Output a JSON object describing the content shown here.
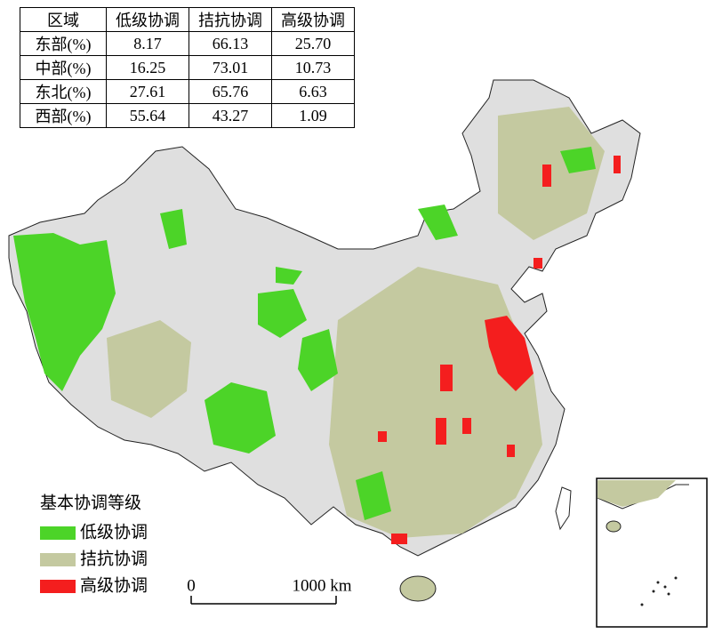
{
  "table": {
    "header": [
      "区域",
      "低级协调",
      "拮抗协调",
      "高级协调"
    ],
    "rows": [
      [
        "东部(%)",
        "8.17",
        "66.13",
        "25.70"
      ],
      [
        "中部(%)",
        "16.25",
        "73.01",
        "10.73"
      ],
      [
        "东北(%)",
        "27.61",
        "65.76",
        "6.63"
      ],
      [
        "西部(%)",
        "55.64",
        "43.27",
        "1.09"
      ]
    ]
  },
  "legend": {
    "title": "基本协调等级",
    "items": [
      {
        "label": "低级协调",
        "color": "#4cd428"
      },
      {
        "label": "拮抗协调",
        "color": "#c4c9a0"
      },
      {
        "label": "高级协调",
        "color": "#f41e1e"
      }
    ]
  },
  "scale": {
    "labels": [
      "0",
      "1000 km"
    ]
  }
}
